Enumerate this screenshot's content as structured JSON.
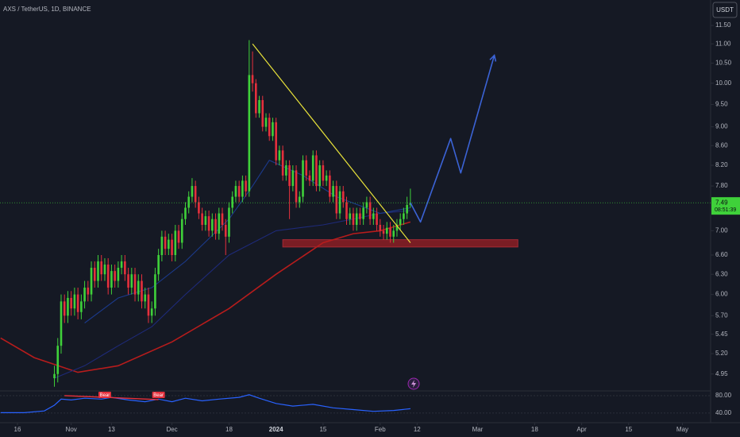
{
  "chart_data": {
    "type": "candlestick",
    "title": "AXS / TetherUS, 1D, BINANCE",
    "currency_button": "USDT",
    "log_scale": true,
    "grid": false,
    "up_color": "#3fd13a",
    "down_color": "#e5303c",
    "ylim": [
      4.77,
      12.23
    ],
    "yticks": [
      {
        "value": 11.5,
        "label": "11.50"
      },
      {
        "value": 11,
        "label": "11.00"
      },
      {
        "value": 10.5,
        "label": "10.50"
      },
      {
        "value": 10,
        "label": "10.00"
      },
      {
        "value": 9.5,
        "label": "9.50"
      },
      {
        "value": 9,
        "label": "9.00"
      },
      {
        "value": 8.6,
        "label": "8.60"
      },
      {
        "value": 8.2,
        "label": "8.20"
      },
      {
        "value": 7.8,
        "label": "7.80"
      },
      {
        "value": 7,
        "label": "7.00"
      },
      {
        "value": 6.6,
        "label": "6.60"
      },
      {
        "value": 6.3,
        "label": "6.30"
      },
      {
        "value": 6,
        "label": "6.00"
      },
      {
        "value": 5.7,
        "label": "5.70"
      },
      {
        "value": 5.45,
        "label": "5.45"
      },
      {
        "value": 5.2,
        "label": "5.20"
      },
      {
        "value": 4.95,
        "label": "4.95"
      }
    ],
    "xlim": [
      -5.2,
      206.4
    ],
    "xticks": [
      {
        "value": 0,
        "label": "16"
      },
      {
        "value": 16,
        "label": "Nov"
      },
      {
        "value": 28,
        "label": "13"
      },
      {
        "value": 46,
        "label": "Dec"
      },
      {
        "value": 63,
        "label": "18"
      },
      {
        "value": 77,
        "label": "2024"
      },
      {
        "value": 91,
        "label": "15"
      },
      {
        "value": 108,
        "label": "Feb"
      },
      {
        "value": 119,
        "label": "12"
      },
      {
        "value": 137,
        "label": "Mar"
      },
      {
        "value": 154,
        "label": "18"
      },
      {
        "value": 168,
        "label": "Apr"
      },
      {
        "value": 182,
        "label": "15"
      },
      {
        "value": 198,
        "label": "May"
      }
    ],
    "candles": [
      [
        4.9,
        5.05,
        4.8,
        4.95
      ],
      [
        4.95,
        5.4,
        4.85,
        5.3
      ],
      [
        5.3,
        6.0,
        5.2,
        5.9
      ],
      [
        5.9,
        6.0,
        5.6,
        5.7
      ],
      [
        5.7,
        6.05,
        5.6,
        5.95
      ],
      [
        5.95,
        6.05,
        5.7,
        5.8
      ],
      [
        5.8,
        6.1,
        5.7,
        6.0
      ],
      [
        6.0,
        6.1,
        5.65,
        5.75
      ],
      [
        5.75,
        6.0,
        5.65,
        5.9
      ],
      [
        5.9,
        6.2,
        5.8,
        6.1
      ],
      [
        6.1,
        6.2,
        5.9,
        6.0
      ],
      [
        6.0,
        6.5,
        5.9,
        6.4
      ],
      [
        6.4,
        6.5,
        6.1,
        6.2
      ],
      [
        6.2,
        6.6,
        6.1,
        6.5
      ],
      [
        6.5,
        6.6,
        6.2,
        6.3
      ],
      [
        6.3,
        6.55,
        6.2,
        6.45
      ],
      [
        6.45,
        6.55,
        6.0,
        6.1
      ],
      [
        6.1,
        6.45,
        6.0,
        6.35
      ],
      [
        6.35,
        6.45,
        6.1,
        6.2
      ],
      [
        6.2,
        6.5,
        6.1,
        6.4
      ],
      [
        6.4,
        6.6,
        6.3,
        6.5
      ],
      [
        6.5,
        6.6,
        6.2,
        6.3
      ],
      [
        6.3,
        6.4,
        6.0,
        6.1
      ],
      [
        6.1,
        6.4,
        6.0,
        6.3
      ],
      [
        6.3,
        6.4,
        5.9,
        6.0
      ],
      [
        6.0,
        6.3,
        5.9,
        6.2
      ],
      [
        6.2,
        6.3,
        5.8,
        5.9
      ],
      [
        5.9,
        6.1,
        5.8,
        6.0
      ],
      [
        6.0,
        6.1,
        5.6,
        5.7
      ],
      [
        5.7,
        5.9,
        5.6,
        5.8
      ],
      [
        5.8,
        6.4,
        5.7,
        6.3
      ],
      [
        6.3,
        6.7,
        6.2,
        6.6
      ],
      [
        6.6,
        7.0,
        6.5,
        6.9
      ],
      [
        6.9,
        7.0,
        6.6,
        6.7
      ],
      [
        6.7,
        6.95,
        6.6,
        6.85
      ],
      [
        6.85,
        6.95,
        6.5,
        6.6
      ],
      [
        6.6,
        7.1,
        6.5,
        7.0
      ],
      [
        7.0,
        7.1,
        6.7,
        6.8
      ],
      [
        6.8,
        7.3,
        6.7,
        7.2
      ],
      [
        7.2,
        7.5,
        7.1,
        7.4
      ],
      [
        7.4,
        7.7,
        7.3,
        7.6
      ],
      [
        7.6,
        7.95,
        7.5,
        7.8
      ],
      [
        7.8,
        7.9,
        7.4,
        7.5
      ],
      [
        7.5,
        7.6,
        7.2,
        7.3
      ],
      [
        7.3,
        7.4,
        7.0,
        7.1
      ],
      [
        7.1,
        7.35,
        7.0,
        7.25
      ],
      [
        7.25,
        7.35,
        6.9,
        7.0
      ],
      [
        7.0,
        7.3,
        6.9,
        7.2
      ],
      [
        7.2,
        7.3,
        6.85,
        6.95
      ],
      [
        6.95,
        7.4,
        6.85,
        7.3
      ],
      [
        7.3,
        7.4,
        7.0,
        7.1
      ],
      [
        7.1,
        7.2,
        6.6,
        6.9
      ],
      [
        6.9,
        7.5,
        6.8,
        7.4
      ],
      [
        7.4,
        7.7,
        7.3,
        7.6
      ],
      [
        7.6,
        7.9,
        7.5,
        7.8
      ],
      [
        7.8,
        7.9,
        7.5,
        7.6
      ],
      [
        7.6,
        8.0,
        7.5,
        7.9
      ],
      [
        7.9,
        8.0,
        7.6,
        7.7
      ],
      [
        7.7,
        11.1,
        7.6,
        10.2
      ],
      [
        10.2,
        10.8,
        9.8,
        10.0
      ],
      [
        10.0,
        10.1,
        9.2,
        9.3
      ],
      [
        9.3,
        9.7,
        9.2,
        9.6
      ],
      [
        9.6,
        9.7,
        8.9,
        9.0
      ],
      [
        9.0,
        9.3,
        8.9,
        9.2
      ],
      [
        9.2,
        9.3,
        8.7,
        8.8
      ],
      [
        8.8,
        9.2,
        8.7,
        9.1
      ],
      [
        9.1,
        9.2,
        8.2,
        8.3
      ],
      [
        8.3,
        8.6,
        8.2,
        8.5
      ],
      [
        8.5,
        8.6,
        7.9,
        8.0
      ],
      [
        8.0,
        8.3,
        7.9,
        8.2
      ],
      [
        8.2,
        8.3,
        7.2,
        7.8
      ],
      [
        7.8,
        8.2,
        7.7,
        8.1
      ],
      [
        8.1,
        8.2,
        7.4,
        7.5
      ],
      [
        7.5,
        7.7,
        7.4,
        7.6
      ],
      [
        7.6,
        8.4,
        7.5,
        8.3
      ],
      [
        8.3,
        8.4,
        7.9,
        8.0
      ],
      [
        8.0,
        8.1,
        7.8,
        7.9
      ],
      [
        7.9,
        8.5,
        7.8,
        8.4
      ],
      [
        8.4,
        8.5,
        7.7,
        7.8
      ],
      [
        7.8,
        8.3,
        7.7,
        8.2
      ],
      [
        8.2,
        8.3,
        7.8,
        7.9
      ],
      [
        7.9,
        8.1,
        7.8,
        8.0
      ],
      [
        8.0,
        8.1,
        7.5,
        7.6
      ],
      [
        7.6,
        7.9,
        7.5,
        7.8
      ],
      [
        7.8,
        7.9,
        7.2,
        7.3
      ],
      [
        7.3,
        7.8,
        7.2,
        7.7
      ],
      [
        7.7,
        7.8,
        7.4,
        7.5
      ],
      [
        7.5,
        7.6,
        7.1,
        7.2
      ],
      [
        7.2,
        7.4,
        7.1,
        7.3
      ],
      [
        7.3,
        7.4,
        7.0,
        7.1
      ],
      [
        7.1,
        7.4,
        7.0,
        7.3
      ],
      [
        7.3,
        7.4,
        7.1,
        7.2
      ],
      [
        7.2,
        7.5,
        7.1,
        7.4
      ],
      [
        7.4,
        7.6,
        7.3,
        7.5
      ],
      [
        7.5,
        7.6,
        7.1,
        7.2
      ],
      [
        7.2,
        7.4,
        7.1,
        7.3
      ],
      [
        7.3,
        7.4,
        7.0,
        7.1
      ],
      [
        7.1,
        7.2,
        6.9,
        7.0
      ],
      [
        7.0,
        7.1,
        6.85,
        6.95
      ],
      [
        6.95,
        7.15,
        6.85,
        7.05
      ],
      [
        7.05,
        7.15,
        6.8,
        6.9
      ],
      [
        6.9,
        7.1,
        6.8,
        7.0
      ],
      [
        7.0,
        7.2,
        6.9,
        7.1
      ],
      [
        7.1,
        7.3,
        7.0,
        7.2
      ],
      [
        7.2,
        7.4,
        7.1,
        7.3
      ],
      [
        7.3,
        7.6,
        7.2,
        7.45
      ],
      [
        7.45,
        7.75,
        7.4,
        7.49
      ]
    ],
    "overlays": [
      {
        "color": "#b71c1c",
        "x": [
          -5,
          5,
          18,
          30,
          46,
          63,
          77,
          91,
          100,
          108,
          117
        ],
        "values": [
          5.4,
          5.15,
          4.97,
          5.05,
          5.35,
          5.8,
          6.3,
          6.8,
          6.95,
          7.0,
          7.15
        ]
      },
      {
        "color": "#1e2a78",
        "x": [
          11,
          20,
          30,
          40,
          50,
          63,
          77,
          91,
          100,
          108,
          117
        ],
        "values": [
          4.9,
          5.05,
          5.3,
          5.55,
          6.0,
          6.6,
          7.0,
          7.1,
          7.2,
          7.3,
          7.35
        ]
      },
      {
        "color": "#1b3a8c",
        "x": [
          20,
          30,
          40,
          50,
          63,
          70,
          75,
          85,
          95,
          108,
          117
        ],
        "values": [
          5.6,
          5.95,
          6.1,
          6.5,
          7.2,
          7.8,
          8.3,
          8.0,
          7.6,
          7.3,
          7.4
        ]
      }
    ],
    "trendline": {
      "color": "#e8e23a",
      "x": [
        70,
        117
      ],
      "values": [
        11.0,
        6.8
      ]
    },
    "zone": {
      "color": "#7a1d24",
      "x": [
        79,
        149
      ],
      "values": [
        6.85,
        6.73
      ]
    },
    "projection": {
      "color": "#3b63d6",
      "x": [
        117,
        120,
        129,
        132,
        142
      ],
      "values": [
        7.49,
        7.15,
        8.75,
        8.05,
        10.7
      ]
    },
    "last_price": 7.49,
    "countdown": "08:51:39",
    "rsi": {
      "ylim": [
        18,
        89
      ],
      "yticks": [
        {
          "value": 80,
          "label": "80.00"
        },
        {
          "value": 40,
          "label": "40.00"
        }
      ],
      "color": "#2962ff",
      "x": [
        -5,
        2,
        8,
        11,
        13,
        16,
        20,
        25,
        28,
        33,
        38,
        42,
        46,
        50,
        55,
        60,
        66,
        69,
        72,
        77,
        82,
        88,
        94,
        100,
        106,
        112,
        117
      ],
      "values": [
        41,
        41,
        45,
        58,
        72,
        70,
        74,
        72,
        76,
        70,
        66,
        72,
        66,
        74,
        68,
        72,
        76,
        82,
        74,
        62,
        56,
        60,
        52,
        48,
        44,
        46,
        50
      ],
      "divergence": {
        "color": "#e5303c",
        "x": [
          14,
          42
        ],
        "values": [
          80,
          71
        ]
      },
      "signals": [
        {
          "x": 26,
          "label": "Bear"
        },
        {
          "x": 42,
          "label": "Bear"
        }
      ]
    }
  }
}
